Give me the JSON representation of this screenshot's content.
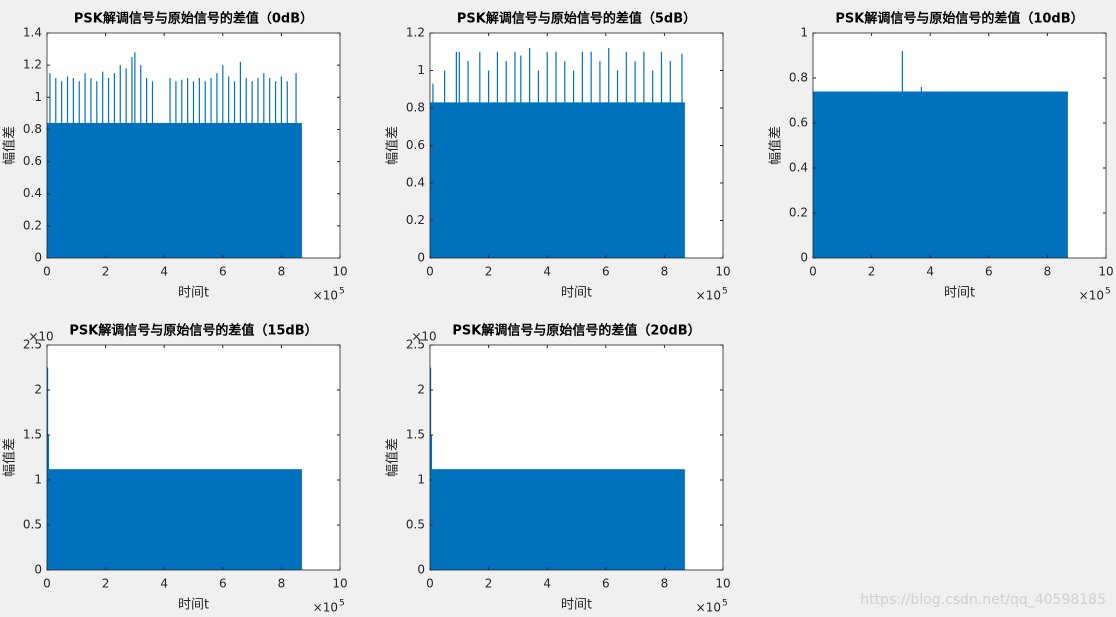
{
  "chart_data": [
    {
      "type": "spikes",
      "title": "PSK解调信号与原始信号的差值（0dB）",
      "x_label": "时间t",
      "y_label": "幅值差",
      "x_multiplier": {
        "base": "×10",
        "exp": "5"
      },
      "color": "#0072bd",
      "band_x": [
        0,
        8.7
      ],
      "band_value": 0.84,
      "x": [
        0.1,
        0.3,
        0.5,
        0.7,
        0.9,
        1.1,
        1.3,
        1.5,
        1.7,
        1.9,
        2.1,
        2.3,
        2.5,
        2.7,
        2.9,
        3.0,
        3.2,
        3.4,
        3.6,
        4.2,
        4.4,
        4.6,
        4.8,
        5.0,
        5.2,
        5.4,
        5.6,
        5.8,
        6.0,
        6.2,
        6.4,
        6.6,
        6.8,
        7.0,
        7.2,
        7.4,
        7.6,
        7.8,
        8.0,
        8.2,
        8.5
      ],
      "values": [
        1.15,
        1.12,
        1.1,
        1.13,
        1.12,
        1.1,
        1.15,
        1.12,
        1.1,
        1.16,
        1.12,
        1.15,
        1.2,
        1.18,
        1.25,
        1.28,
        1.2,
        1.12,
        1.1,
        1.12,
        1.1,
        1.11,
        1.12,
        1.1,
        1.12,
        1.1,
        1.12,
        1.15,
        1.2,
        1.13,
        1.1,
        1.22,
        1.12,
        1.1,
        1.12,
        1.15,
        1.12,
        1.1,
        1.13,
        1.1,
        1.15
      ],
      "xlim": [
        0,
        10
      ],
      "xticks": [
        0,
        2,
        4,
        6,
        8,
        10
      ],
      "ylim": [
        0,
        1.4
      ],
      "yticks": [
        0,
        0.2,
        0.4,
        0.6,
        0.8,
        1,
        1.2,
        1.4
      ]
    },
    {
      "type": "spikes",
      "title": "PSK解调信号与原始信号的差值（5dB）",
      "x_label": "时间t",
      "y_label": "幅值差",
      "x_multiplier": {
        "base": "×10",
        "exp": "5"
      },
      "color": "#0072bd",
      "band_x": [
        0,
        8.7
      ],
      "band_value": 0.83,
      "x": [
        0.1,
        0.5,
        0.9,
        1.0,
        1.3,
        1.7,
        2.0,
        2.3,
        2.6,
        2.9,
        3.1,
        3.4,
        3.7,
        4.0,
        4.3,
        4.6,
        4.9,
        5.2,
        5.5,
        5.8,
        6.1,
        6.4,
        6.7,
        7.0,
        7.3,
        7.6,
        7.9,
        8.2,
        8.6
      ],
      "values": [
        0.93,
        1.0,
        1.1,
        1.1,
        1.05,
        1.1,
        1.0,
        1.1,
        1.05,
        1.1,
        1.08,
        1.12,
        1.0,
        1.1,
        1.1,
        1.05,
        1.0,
        1.1,
        1.1,
        1.05,
        1.12,
        1.0,
        1.1,
        1.05,
        1.1,
        1.0,
        1.1,
        1.05,
        1.09
      ],
      "xlim": [
        0,
        10
      ],
      "xticks": [
        0,
        2,
        4,
        6,
        8,
        10
      ],
      "ylim": [
        0,
        1.2
      ],
      "yticks": [
        0,
        0.2,
        0.4,
        0.6,
        0.8,
        1,
        1.2
      ]
    },
    {
      "type": "spikes",
      "title": "PSK解调信号与原始信号的差值（10dB）",
      "x_label": "时间t",
      "y_label": "幅值差",
      "x_multiplier": {
        "base": "×10",
        "exp": "5"
      },
      "color": "#0072bd",
      "band_x": [
        0,
        8.7
      ],
      "band_value": 0.74,
      "x": [
        3.05,
        3.7
      ],
      "values": [
        0.92,
        0.76
      ],
      "xlim": [
        0,
        10
      ],
      "xticks": [
        0,
        2,
        4,
        6,
        8,
        10
      ],
      "ylim": [
        0,
        1
      ],
      "yticks": [
        0,
        0.2,
        0.4,
        0.6,
        0.8,
        1
      ]
    },
    {
      "type": "spikes",
      "title": "PSK解调信号与原始信号的差值（15dB）",
      "x_label": "时间t",
      "y_label": "幅值差",
      "x_multiplier": {
        "base": "×10",
        "exp": "5"
      },
      "y_multiplier": "×10",
      "color": "#0072bd",
      "band_x": [
        0,
        8.7
      ],
      "band_value": 1.12,
      "x": [
        0.02,
        0.05
      ],
      "values": [
        2.25,
        1.5
      ],
      "xlim": [
        0,
        10
      ],
      "xticks": [
        0,
        2,
        4,
        6,
        8,
        10
      ],
      "ylim": [
        0,
        2.5
      ],
      "yticks": [
        0,
        0.5,
        1,
        1.5,
        2,
        2.5
      ]
    },
    {
      "type": "spikes",
      "title": "PSK解调信号与原始信号的差值（20dB）",
      "x_label": "时间t",
      "y_label": "幅值差",
      "x_multiplier": {
        "base": "×10",
        "exp": "5"
      },
      "y_multiplier": "×10",
      "color": "#0072bd",
      "band_x": [
        0,
        8.7
      ],
      "band_value": 1.12,
      "x": [
        0.02,
        0.05
      ],
      "values": [
        2.25,
        1.5
      ],
      "xlim": [
        0,
        10
      ],
      "xticks": [
        0,
        2,
        4,
        6,
        8,
        10
      ],
      "ylim": [
        0,
        2.5
      ],
      "yticks": [
        0,
        0.5,
        1,
        1.5,
        2,
        2.5
      ]
    }
  ],
  "watermark": "https://blog.csdn.net/qq_40598185"
}
